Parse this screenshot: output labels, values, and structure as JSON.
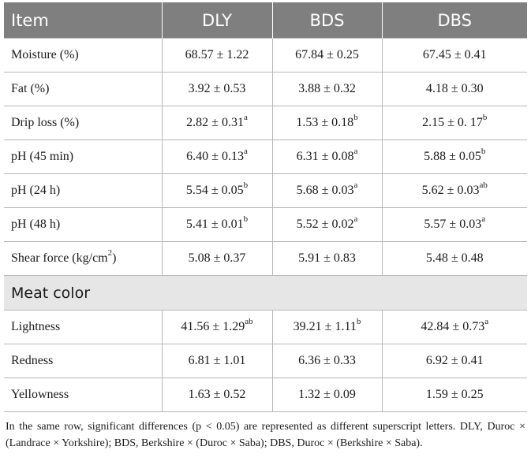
{
  "table": {
    "headers": [
      "Item",
      "DLY",
      "BDS",
      "DBS"
    ],
    "rows": [
      {
        "item": "Moisture (%)",
        "item_sup": "",
        "cells": [
          {
            "value": "68.57 ± 1.22",
            "sup": ""
          },
          {
            "value": "67.84 ± 0.25",
            "sup": ""
          },
          {
            "value": "67.45 ± 0.41",
            "sup": ""
          }
        ]
      },
      {
        "item": "Fat (%)",
        "item_sup": "",
        "cells": [
          {
            "value": "3.92 ± 0.53",
            "sup": ""
          },
          {
            "value": "3.88 ± 0.32",
            "sup": ""
          },
          {
            "value": "4.18 ± 0.30",
            "sup": ""
          }
        ]
      },
      {
        "item": "Drip loss (%)",
        "item_sup": "",
        "cells": [
          {
            "value": "2.82 ± 0.31",
            "sup": "a"
          },
          {
            "value": "1.53 ± 0.18",
            "sup": "b"
          },
          {
            "value": "2.15 ± 0. 17",
            "sup": "b"
          }
        ]
      },
      {
        "item": "pH (45 min)",
        "item_sup": "",
        "cells": [
          {
            "value": "6.40 ± 0.13",
            "sup": "a"
          },
          {
            "value": "6.31 ± 0.08",
            "sup": "a"
          },
          {
            "value": "5.88 ± 0.05",
            "sup": "b"
          }
        ]
      },
      {
        "item": "pH (24 h)",
        "item_sup": "",
        "cells": [
          {
            "value": "5.54 ± 0.05",
            "sup": "b"
          },
          {
            "value": "5.68 ± 0.03",
            "sup": "a"
          },
          {
            "value": "5.62 ± 0.03",
            "sup": "ab"
          }
        ]
      },
      {
        "item": "pH (48 h)",
        "item_sup": "",
        "cells": [
          {
            "value": "5.41 ± 0.01",
            "sup": "b"
          },
          {
            "value": "5.52 ± 0.02",
            "sup": "a"
          },
          {
            "value": "5.57 ± 0.03",
            "sup": "a"
          }
        ]
      },
      {
        "item": "Shear force (kg/cm",
        "item_sup": "2",
        "item_after": ")",
        "cells": [
          {
            "value": "5.08 ± 0.37",
            "sup": ""
          },
          {
            "value": "5.91 ± 0.83",
            "sup": ""
          },
          {
            "value": "5.48 ± 0.48",
            "sup": ""
          }
        ]
      }
    ],
    "section_title": "Meat color",
    "section_rows": [
      {
        "item": "Lightness",
        "cells": [
          {
            "value": "41.56 ± 1.29",
            "sup": "ab"
          },
          {
            "value": "39.21 ± 1.11",
            "sup": "b"
          },
          {
            "value": "42.84 ± 0.73",
            "sup": "a"
          }
        ]
      },
      {
        "item": "Redness",
        "cells": [
          {
            "value": "6.81 ± 1.01",
            "sup": ""
          },
          {
            "value": "6.36 ± 0.33",
            "sup": ""
          },
          {
            "value": "6.92 ± 0.41",
            "sup": ""
          }
        ]
      },
      {
        "item": "Yellowness",
        "cells": [
          {
            "value": "1.63 ± 0.52",
            "sup": ""
          },
          {
            "value": "1.32 ± 0.09",
            "sup": ""
          },
          {
            "value": "1.59 ± 0.25",
            "sup": ""
          }
        ]
      }
    ]
  },
  "footnote": "In the same row, significant differences (p < 0.05) are represented as different superscript letters. DLY, Duroc × (Landrace × Yorkshire); BDS, Berkshire × (Duroc × Saba); DBS, Duroc × (Berkshire × Saba)."
}
